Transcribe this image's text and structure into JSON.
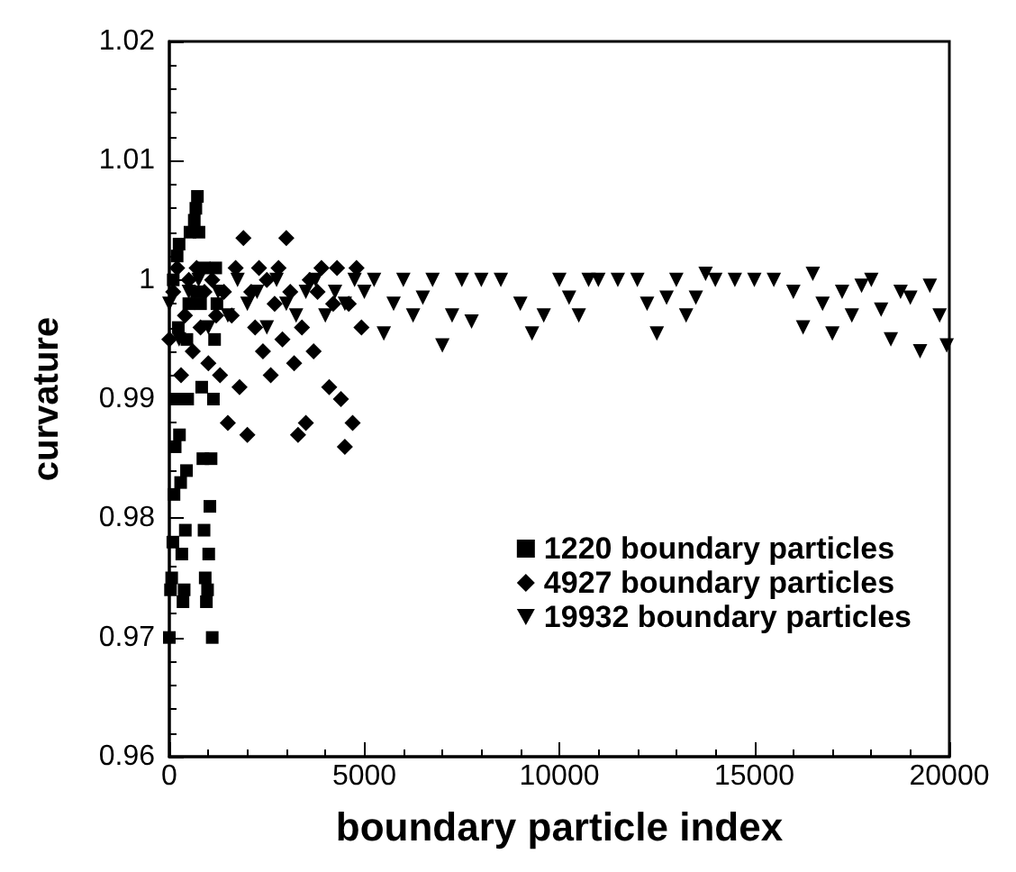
{
  "chart_data": {
    "type": "scatter",
    "xlabel": "boundary particle index",
    "ylabel": "curvature",
    "xlim": [
      0,
      20000
    ],
    "xticks": [
      0,
      5000,
      10000,
      15000,
      20000
    ],
    "ylim": [
      0.96,
      1.02
    ],
    "yticks": [
      0.96,
      0.97,
      0.98,
      0.99,
      1,
      1.01,
      1.02
    ],
    "grid": false,
    "legend": "bottom right",
    "series": [
      {
        "name": "1220 boundary particles",
        "color": "#000000",
        "marker": "square",
        "x": [
          0,
          30,
          60,
          90,
          100,
          120,
          150,
          180,
          200,
          230,
          250,
          260,
          290,
          320,
          350,
          380,
          410,
          440,
          450,
          470,
          500,
          530,
          640,
          680,
          700,
          720,
          760,
          800,
          830,
          860,
          890,
          900,
          920,
          950,
          980,
          1010,
          1040,
          1070,
          1100,
          1130,
          1160,
          1190,
          1220
        ],
        "values": [
          0.97,
          0.974,
          0.975,
          0.978,
          1.0,
          0.982,
          0.986,
          0.99,
          1.002,
          0.996,
          1.003,
          0.987,
          0.983,
          0.977,
          0.973,
          0.974,
          0.979,
          0.984,
          0.995,
          0.99,
          0.998,
          1.004,
          1.005,
          1.006,
          0.999,
          1.007,
          1.004,
          0.998,
          0.991,
          0.985,
          0.979,
          1.001,
          0.975,
          0.973,
          0.974,
          0.977,
          0.981,
          0.985,
          0.97,
          0.99,
          0.995,
          1.001,
          0.998
        ]
      },
      {
        "name": "4927 boundary particles",
        "color": "#000000",
        "marker": "diamond",
        "x": [
          0,
          100,
          200,
          300,
          400,
          500,
          600,
          700,
          800,
          900,
          1000,
          1100,
          1200,
          1300,
          1400,
          1500,
          1600,
          1700,
          1800,
          1900,
          2000,
          2100,
          2200,
          2300,
          2400,
          2500,
          2600,
          2700,
          2800,
          2900,
          3000,
          3100,
          3200,
          3300,
          3400,
          3500,
          3600,
          3700,
          3800,
          3900,
          4100,
          4200,
          4300,
          4400,
          4500,
          4600,
          4700,
          4800,
          4927
        ],
        "values": [
          0.995,
          0.999,
          1.001,
          0.992,
          0.997,
          1.0,
          0.994,
          1.001,
          0.996,
          0.999,
          0.993,
          1.0,
          0.997,
          0.992,
          0.999,
          0.988,
          0.997,
          1.001,
          0.991,
          1.0035,
          0.987,
          0.999,
          0.996,
          1.001,
          0.994,
          1.0,
          0.992,
          0.998,
          1.001,
          0.995,
          1.0035,
          0.999,
          0.993,
          0.987,
          0.996,
          0.988,
          1.0,
          0.994,
          0.999,
          1.001,
          0.991,
          0.998,
          1.001,
          0.99,
          0.986,
          0.998,
          0.988,
          1.001,
          0.996
        ]
      },
      {
        "name": "19932 boundary particles",
        "color": "#000000",
        "marker": "triangle",
        "x": [
          0,
          250,
          500,
          750,
          1000,
          1250,
          1500,
          1750,
          2000,
          2250,
          2500,
          2750,
          3000,
          3250,
          3500,
          3750,
          4000,
          4250,
          4500,
          4750,
          5000,
          5250,
          5500,
          5750,
          6000,
          6250,
          6500,
          6750,
          7000,
          7250,
          7500,
          7750,
          8000,
          8500,
          9000,
          9300,
          9600,
          10000,
          10250,
          10500,
          10750,
          11000,
          11500,
          12000,
          12250,
          12500,
          12750,
          13000,
          13250,
          13500,
          13750,
          14000,
          14500,
          15000,
          15500,
          16000,
          16250,
          16500,
          16750,
          17000,
          17250,
          17500,
          17750,
          18000,
          18250,
          18500,
          18750,
          19000,
          19250,
          19500,
          19750,
          19932
        ],
        "values": [
          0.998,
          0.995,
          0.999,
          1.0,
          0.996,
          0.999,
          0.997,
          1.0,
          0.998,
          0.999,
          0.996,
          1.0,
          0.998,
          0.997,
          0.999,
          1.0,
          0.997,
          0.999,
          0.998,
          1.0,
          0.999,
          1.0,
          0.9955,
          0.998,
          1.0,
          0.997,
          0.9985,
          1.0,
          0.9945,
          0.997,
          1.0,
          0.9965,
          1.0,
          1.0,
          0.998,
          0.9955,
          0.997,
          1.0,
          0.9985,
          0.997,
          1.0,
          1.0,
          1.0,
          1.0,
          0.998,
          0.9955,
          0.9985,
          1.0,
          0.997,
          0.9985,
          1.0005,
          1.0,
          1.0,
          1.0,
          1.0,
          0.999,
          0.996,
          1.0005,
          0.998,
          0.9955,
          0.999,
          0.997,
          0.9995,
          1.0,
          0.9975,
          0.995,
          0.999,
          0.9985,
          0.994,
          0.9995,
          0.997,
          0.9945
        ]
      }
    ]
  }
}
